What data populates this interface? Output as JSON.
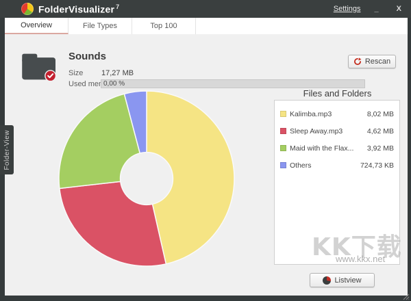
{
  "window": {
    "app_name": "FolderVisualizer",
    "app_version": "7",
    "settings_label": "Settings",
    "minimize_label": "_",
    "close_label": "X"
  },
  "tabs": {
    "overview": "Overview",
    "file_types": "File Types",
    "top_100": "Top 100"
  },
  "side_tab_label": "Folder-View",
  "header": {
    "folder_name": "Sounds",
    "size_label": "Size",
    "size_value": "17,27 MB",
    "used_memory_label": "Used memory",
    "used_memory_value": "0,00 %",
    "used_memory_percent": 0,
    "rescan_label": "Rescan"
  },
  "files_panel": {
    "title": "Files and Folders",
    "items": [
      {
        "name": "Kalimba.mp3",
        "size": "8,02 MB",
        "color": "#F5E484"
      },
      {
        "name": "Sleep Away.mp3",
        "size": "4,62 MB",
        "color": "#DA5265"
      },
      {
        "name": "Maid with the Flax...",
        "size": "3,92 MB",
        "color": "#A4CE61"
      },
      {
        "name": "Others",
        "size": "724,73 KB",
        "color": "#8A96F0"
      }
    ]
  },
  "chart_data": {
    "type": "pie",
    "variant": "donut",
    "categories": [
      "Kalimba.mp3",
      "Sleep Away.mp3",
      "Maid with the Flax...",
      "Others"
    ],
    "values": [
      8.02,
      4.62,
      3.92,
      0.708
    ],
    "unit": "MB",
    "value_labels": [
      "8,02 MB",
      "4,62 MB",
      "3,92 MB",
      "724,73 KB"
    ],
    "colors": [
      "#F5E484",
      "#DA5265",
      "#A4CE61",
      "#8A96F0"
    ],
    "total_label": "17,27 MB",
    "start_angle_deg": 0,
    "direction": "clockwise",
    "inner_radius_ratio": 0.3,
    "legend_position": "right"
  },
  "footer": {
    "listview_label": "Listview"
  },
  "watermark": {
    "brand": "KK下载",
    "url": "www.kkx.net"
  },
  "colors": {
    "titlebar": "#3A3F3F",
    "content_bg": "#F0F0F0",
    "tab_underline": "#DBA8A0",
    "rescan_icon": "#C42B1C",
    "badge_red": "#C3202F",
    "slice_gap": "#FAFAFA"
  }
}
